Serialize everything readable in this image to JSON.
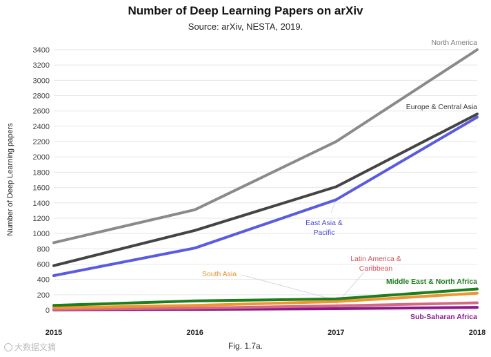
{
  "caption": "Fig. 1.7a.",
  "watermark": "大数据文摘",
  "chart_data": {
    "type": "line",
    "title": "Number of Deep Learning Papers on arXiv",
    "subtitle": "Source: arXiv, NESTA, 2019.",
    "xlabel": "",
    "ylabel": "Number of Deep Learning papers",
    "x": [
      2015,
      2016,
      2017,
      2018
    ],
    "x_tick_labels": [
      "2015",
      "2016",
      "2017",
      "2018"
    ],
    "ylim": [
      0,
      3400
    ],
    "y_ticks": [
      0,
      200,
      400,
      600,
      800,
      1000,
      1200,
      1400,
      1600,
      1800,
      2000,
      2200,
      2400,
      2600,
      2800,
      3000,
      3200,
      3400
    ],
    "grid": true,
    "series": [
      {
        "name": "North America",
        "label_lines": [
          "North America"
        ],
        "color": "#8a8a8a",
        "values": [
          880,
          1310,
          2200,
          3400
        ]
      },
      {
        "name": "Europe & Central Asia",
        "label_lines": [
          "Europe & Central Asia"
        ],
        "color": "#444444",
        "values": [
          580,
          1040,
          1610,
          2560
        ]
      },
      {
        "name": "East Asia & Pacific",
        "label_lines": [
          "East Asia &",
          "Pacific"
        ],
        "color": "#5b5be0",
        "values": [
          450,
          810,
          1440,
          2520
        ]
      },
      {
        "name": "Middle East & North Africa",
        "label_lines": [
          "Middle East & North Africa"
        ],
        "color": "#1e7d1e",
        "values": [
          60,
          120,
          145,
          275
        ]
      },
      {
        "name": "South Asia",
        "label_lines": [
          "South Asia"
        ],
        "color": "#f0962e",
        "values": [
          30,
          60,
          110,
          220
        ]
      },
      {
        "name": "Latin America & Caribbean",
        "label_lines": [
          "Latin America &",
          "Caribbean"
        ],
        "color": "#d46a82",
        "values": [
          10,
          25,
          55,
          95
        ]
      },
      {
        "name": "Sub-Saharan Africa",
        "label_lines": [
          "Sub-Saharan Africa"
        ],
        "color": "#8a1a8a",
        "values": [
          3,
          8,
          18,
          35
        ]
      }
    ]
  }
}
